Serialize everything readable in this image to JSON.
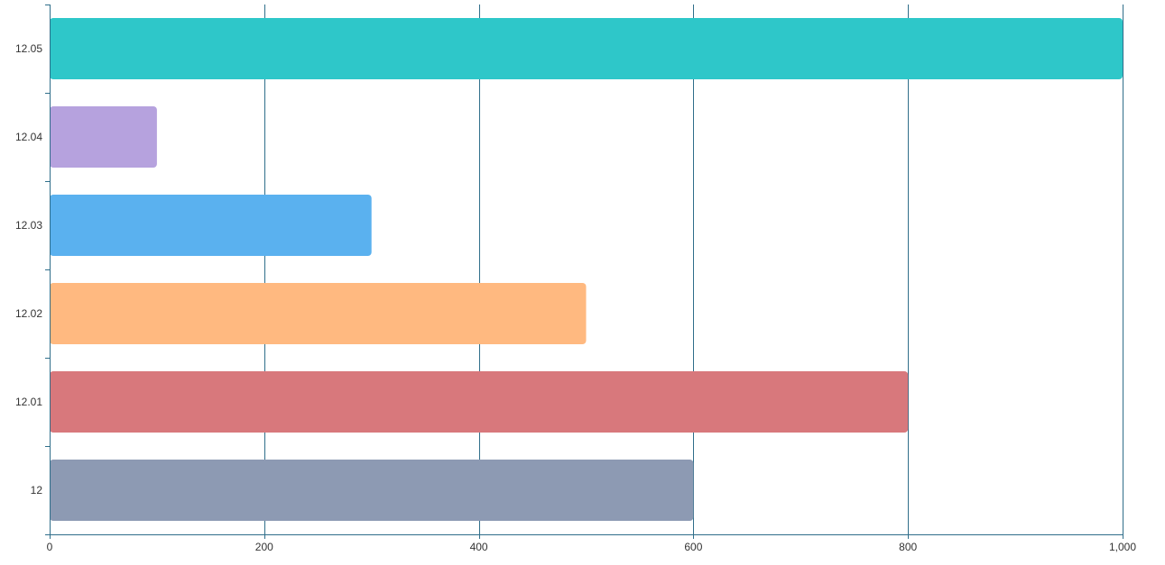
{
  "chart_data": {
    "type": "bar",
    "orientation": "horizontal",
    "title": "",
    "xlabel": "",
    "ylabel": "",
    "categories": [
      "12",
      "12.01",
      "12.02",
      "12.03",
      "12.04",
      "12.05"
    ],
    "values": [
      600,
      800,
      500,
      300,
      100,
      1000
    ],
    "bar_colors": [
      "#8d9ab3",
      "#d8787c",
      "#ffb980",
      "#5ab1ef",
      "#b6a2de",
      "#2ec7c9"
    ],
    "xlim": [
      0,
      1000
    ],
    "x_ticks": [
      0,
      200,
      400,
      600,
      800,
      1000
    ],
    "x_tick_labels": [
      "0",
      "200",
      "400",
      "600",
      "800",
      "1,000"
    ],
    "grid": true,
    "legend": "none",
    "axis_color": "#2f6e8a"
  }
}
